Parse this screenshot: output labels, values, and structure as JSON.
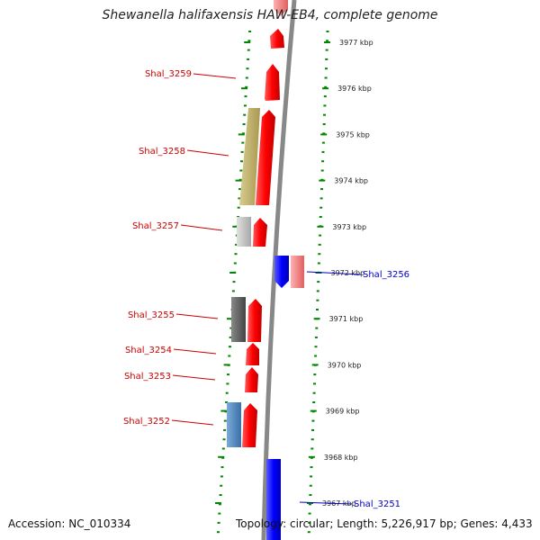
{
  "title": "Shewanella halifaxensis HAW-EB4, complete genome",
  "accession": "Accession: NC_010334",
  "summary": "Topology: circular; Length: 5,226,917 bp; Genes: 4,433",
  "ticks": [
    {
      "label": "3977 kbp",
      "kbp": 3977
    },
    {
      "label": "3976 kbp",
      "kbp": 3976
    },
    {
      "label": "3975 kbp",
      "kbp": 3975
    },
    {
      "label": "3974 kbp",
      "kbp": 3974
    },
    {
      "label": "3973 kbp",
      "kbp": 3973
    },
    {
      "label": "3972 kbp",
      "kbp": 3972
    },
    {
      "label": "3971 kbp",
      "kbp": 3971
    },
    {
      "label": "3970 kbp",
      "kbp": 3970
    },
    {
      "label": "3969 kbp",
      "kbp": 3969
    },
    {
      "label": "3968 kbp",
      "kbp": 3968
    },
    {
      "label": "3967 kbp",
      "kbp": 3967
    }
  ],
  "labels": [
    {
      "text": "Shal_3259",
      "strand": "reverse",
      "color": "#cc0000"
    },
    {
      "text": "Shal_3258",
      "strand": "reverse",
      "color": "#cc0000"
    },
    {
      "text": "Shal_3257",
      "strand": "reverse",
      "color": "#cc0000"
    },
    {
      "text": "Shal_3256",
      "strand": "forward",
      "color": "#0000cc"
    },
    {
      "text": "Shal_3255",
      "strand": "reverse",
      "color": "#cc0000"
    },
    {
      "text": "Shal_3254",
      "strand": "reverse",
      "color": "#cc0000"
    },
    {
      "text": "Shal_3253",
      "strand": "reverse",
      "color": "#cc0000"
    },
    {
      "text": "Shal_3252",
      "strand": "reverse",
      "color": "#cc0000"
    },
    {
      "text": "Shal_3251",
      "strand": "forward",
      "color": "#0000cc"
    }
  ],
  "colors": {
    "reverse_cds": "#ee0000",
    "forward_cds": "#0000ee",
    "tick": "#008800",
    "backbone": "#888888"
  }
}
